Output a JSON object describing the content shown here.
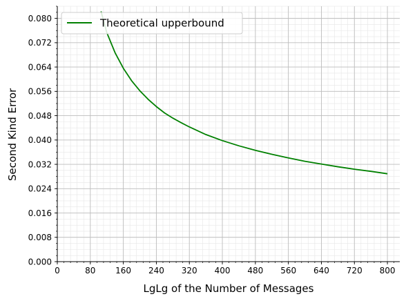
{
  "chart_data": {
    "type": "line",
    "title": "",
    "xlabel": "LgLg of the Number of Messages",
    "ylabel": "Second Kind Error",
    "xlim": [
      0,
      830
    ],
    "ylim": [
      0,
      0.084
    ],
    "x_ticks": [
      0,
      80,
      160,
      240,
      320,
      400,
      480,
      560,
      640,
      720,
      800
    ],
    "x_tick_labels": [
      "0",
      "80",
      "160",
      "240",
      "320",
      "400",
      "480",
      "560",
      "640",
      "720",
      "800"
    ],
    "y_ticks": [
      0,
      0.008,
      0.016,
      0.024,
      0.032,
      0.04,
      0.048,
      0.056,
      0.064,
      0.072,
      0.08
    ],
    "y_tick_labels": [
      "0.000",
      "0.008",
      "0.016",
      "0.024",
      "0.032",
      "0.040",
      "0.048",
      "0.056",
      "0.064",
      "0.072",
      "0.080"
    ],
    "grid": "major and minor",
    "legend_position": "upper-left",
    "series": [
      {
        "name": "Theoretical upperbound",
        "color": "#008000",
        "x": [
          106,
          120,
          140,
          160,
          180,
          200,
          220,
          240,
          260,
          280,
          300,
          320,
          360,
          400,
          440,
          480,
          520,
          560,
          600,
          640,
          680,
          720,
          760,
          800
        ],
        "y": [
          0.0823,
          0.0753,
          0.0687,
          0.0636,
          0.0595,
          0.0562,
          0.0534,
          0.051,
          0.0489,
          0.0472,
          0.0457,
          0.0443,
          0.0418,
          0.0398,
          0.0381,
          0.0366,
          0.0353,
          0.0341,
          0.033,
          0.0321,
          0.0312,
          0.0304,
          0.0297,
          0.0289
        ]
      }
    ]
  }
}
